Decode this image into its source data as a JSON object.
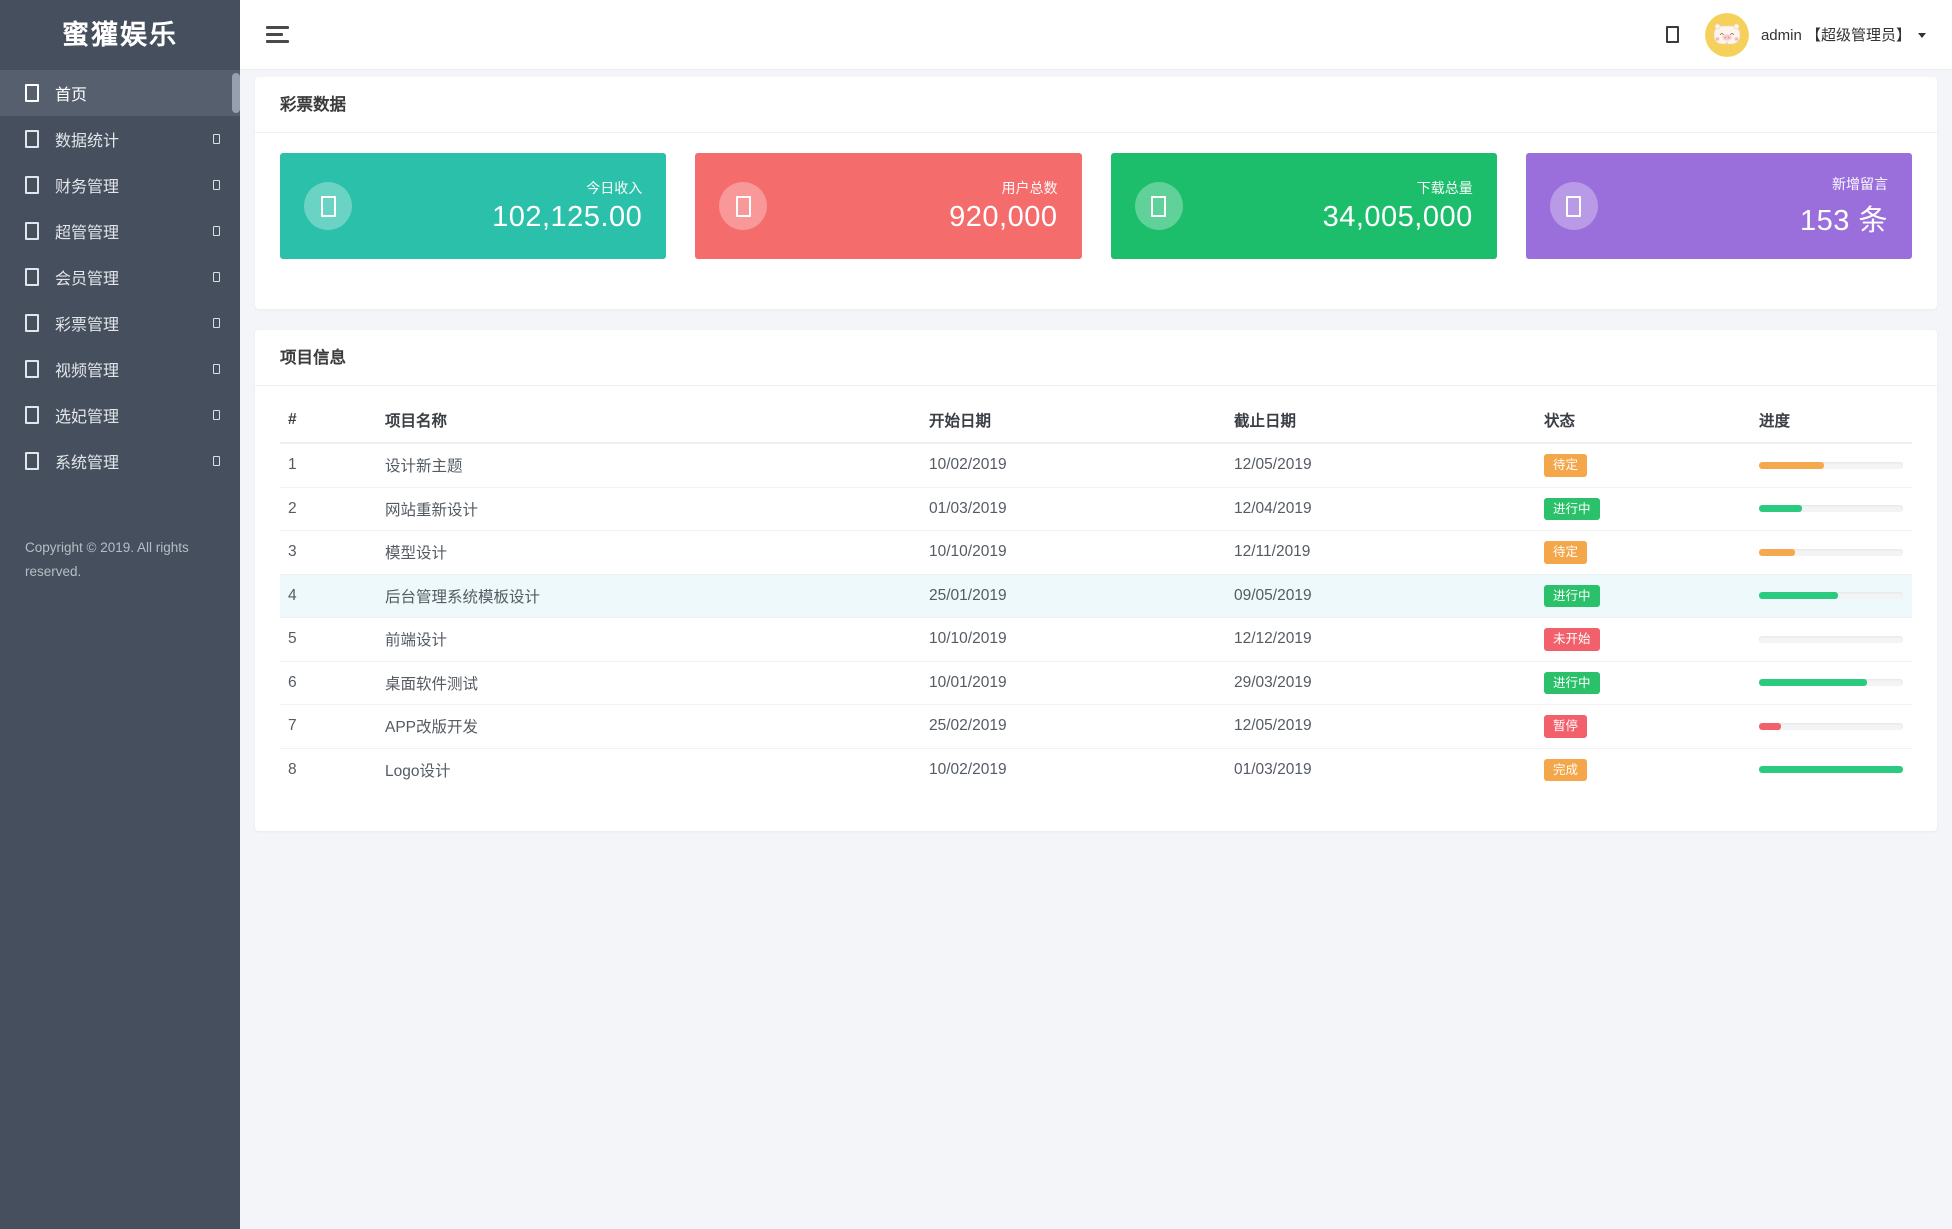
{
  "sidebar": {
    "brand": "蜜獾娱乐",
    "items": [
      {
        "label": "首页",
        "active": true,
        "has_submenu": false
      },
      {
        "label": "数据统计",
        "active": false,
        "has_submenu": true
      },
      {
        "label": "财务管理",
        "active": false,
        "has_submenu": true
      },
      {
        "label": "超管管理",
        "active": false,
        "has_submenu": true
      },
      {
        "label": "会员管理",
        "active": false,
        "has_submenu": true
      },
      {
        "label": "彩票管理",
        "active": false,
        "has_submenu": true
      },
      {
        "label": "视频管理",
        "active": false,
        "has_submenu": true
      },
      {
        "label": "选妃管理",
        "active": false,
        "has_submenu": true
      },
      {
        "label": "系统管理",
        "active": false,
        "has_submenu": true
      }
    ],
    "copyright": "Copyright © 2019. All rights reserved.",
    "colors": {
      "background": "#454f5d",
      "active_item": "#565f6d"
    }
  },
  "header": {
    "user": "admin 【超级管理员】"
  },
  "stats_panel": {
    "title": "彩票数据",
    "cards": [
      {
        "label": "今日收入",
        "value": "102,125.00",
        "color": "#2bc0a9"
      },
      {
        "label": "用户总数",
        "value": "920,000",
        "color": "#f56c6c"
      },
      {
        "label": "下载总量",
        "value": "34,005,000",
        "color": "#1cbe6c"
      },
      {
        "label": "新增留言",
        "value": "153 条",
        "color": "#9a6fdc"
      }
    ]
  },
  "projects_panel": {
    "title": "项目信息",
    "columns": [
      "#",
      "项目名称",
      "开始日期",
      "截止日期",
      "状态",
      "进度"
    ],
    "rows": [
      {
        "num": "1",
        "name": "设计新主题",
        "start": "10/02/2019",
        "end": "12/05/2019",
        "status": "待定",
        "status_color": "#f3a64a",
        "progress": 45,
        "progress_color": "#f5a94f",
        "striped": true,
        "highlight": false
      },
      {
        "num": "2",
        "name": "网站重新设计",
        "start": "01/03/2019",
        "end": "12/04/2019",
        "status": "进行中",
        "status_color": "#2bc06a",
        "progress": 30,
        "progress_color": "#2bca7e",
        "striped": true,
        "highlight": false
      },
      {
        "num": "3",
        "name": "模型设计",
        "start": "10/10/2019",
        "end": "12/11/2019",
        "status": "待定",
        "status_color": "#f3a64a",
        "progress": 25,
        "progress_color": "#f5a94f",
        "striped": true,
        "highlight": false
      },
      {
        "num": "4",
        "name": "后台管理系统模板设计",
        "start": "25/01/2019",
        "end": "09/05/2019",
        "status": "进行中",
        "status_color": "#2bc06a",
        "progress": 55,
        "progress_color": "#2bca7e",
        "striped": true,
        "highlight": true
      },
      {
        "num": "5",
        "name": "前端设计",
        "start": "10/10/2019",
        "end": "12/12/2019",
        "status": "未开始",
        "status_color": "#f2616b",
        "progress": 0,
        "progress_color": "#f2616b",
        "striped": false,
        "highlight": false
      },
      {
        "num": "6",
        "name": "桌面软件测试",
        "start": "10/01/2019",
        "end": "29/03/2019",
        "status": "进行中",
        "status_color": "#2bc06a",
        "progress": 75,
        "progress_color": "#2bca7e",
        "striped": true,
        "highlight": false
      },
      {
        "num": "7",
        "name": "APP改版开发",
        "start": "25/02/2019",
        "end": "12/05/2019",
        "status": "暂停",
        "status_color": "#f2616b",
        "progress": 15,
        "progress_color": "#f2616b",
        "striped": false,
        "highlight": false
      },
      {
        "num": "8",
        "name": "Logo设计",
        "start": "10/02/2019",
        "end": "01/03/2019",
        "status": "完成",
        "status_color": "#f3a64a",
        "progress": 100,
        "progress_color": "#2bca7e",
        "striped": true,
        "highlight": false
      }
    ]
  }
}
